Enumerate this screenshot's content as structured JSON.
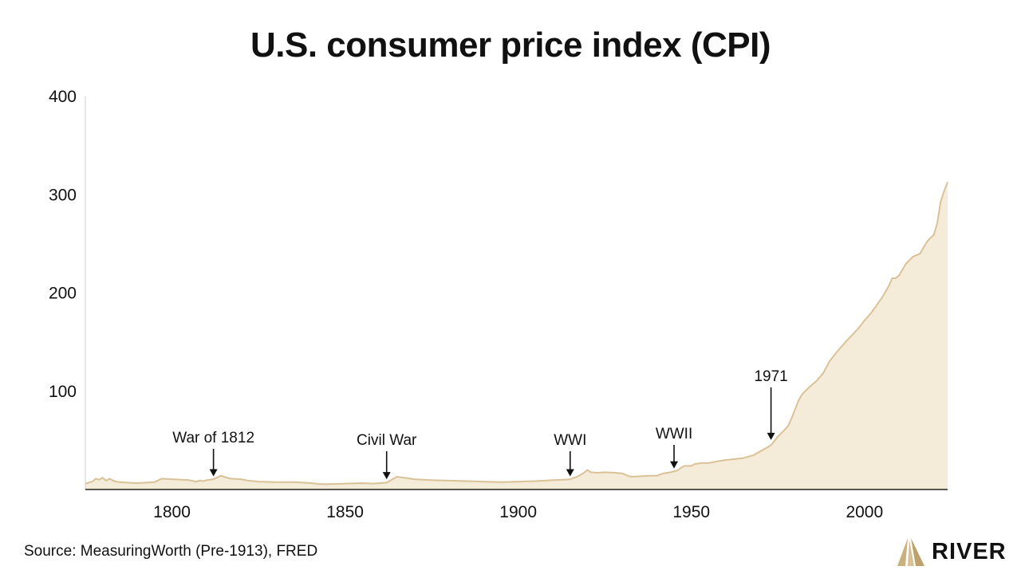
{
  "chart_data": {
    "type": "area",
    "title": "U.S. consumer price index (CPI)",
    "xlabel": "",
    "ylabel": "",
    "xlim": [
      1775,
      2024
    ],
    "ylim": [
      0,
      400
    ],
    "x_ticks": [
      1800,
      1850,
      1900,
      1950,
      2000
    ],
    "y_ticks": [
      100,
      200,
      300,
      400
    ],
    "grid": false,
    "legend": "none",
    "colors": {
      "fill": "#f5ebd9",
      "line": "#d9c297"
    },
    "series": [
      {
        "x": [
          1775,
          1777,
          1778,
          1779,
          1780,
          1781,
          1782,
          1783,
          1784,
          1785,
          1787,
          1790,
          1795,
          1797,
          1800,
          1803,
          1805,
          1807,
          1808,
          1809,
          1810,
          1811,
          1812,
          1813,
          1814,
          1815,
          1817,
          1820,
          1822,
          1825,
          1830,
          1835,
          1838,
          1840,
          1843,
          1845,
          1850,
          1855,
          1858,
          1860,
          1862,
          1864,
          1865,
          1867,
          1870,
          1875,
          1880,
          1885,
          1890,
          1895,
          1900,
          1905,
          1910,
          1913,
          1915,
          1917,
          1918,
          1919,
          1920,
          1921,
          1923,
          1925,
          1928,
          1930,
          1932,
          1933,
          1935,
          1938,
          1940,
          1942,
          1944,
          1946,
          1947,
          1948,
          1950,
          1951,
          1953,
          1955,
          1958,
          1960,
          1965,
          1968,
          1970,
          1971,
          1972,
          1973,
          1975,
          1977,
          1978,
          1979,
          1980,
          1981,
          1982,
          1984,
          1986,
          1988,
          1990,
          1992,
          1995,
          1998,
          2000,
          2002,
          2005,
          2007,
          2008,
          2009,
          2010,
          2012,
          2014,
          2016,
          2018,
          2019,
          2020,
          2021,
          2022,
          2023,
          2024
        ],
        "values": [
          6,
          8,
          11,
          10,
          12,
          9,
          11,
          9,
          8,
          7.5,
          7,
          6.5,
          7.5,
          11,
          10.5,
          10,
          9.5,
          8,
          9,
          8.5,
          9.5,
          10,
          10.5,
          12,
          14,
          13,
          11,
          10.5,
          9,
          8,
          7.5,
          7.5,
          7,
          6.5,
          5.5,
          5.5,
          6,
          6.5,
          6,
          6.5,
          7,
          11,
          13,
          12,
          10.5,
          9.5,
          9,
          8.5,
          8,
          7.5,
          8,
          8.5,
          9.5,
          10,
          10.5,
          13,
          15,
          17,
          20,
          17.5,
          17,
          17.5,
          17,
          16.5,
          13.5,
          13,
          13.5,
          14,
          14,
          16.5,
          17.5,
          19.5,
          22,
          24,
          24,
          26,
          27,
          27,
          29,
          30,
          32,
          35,
          39,
          41,
          43,
          45,
          54,
          61,
          65,
          73,
          82,
          91,
          97,
          104,
          110,
          118,
          131,
          140,
          152,
          163,
          172,
          180,
          195,
          207,
          215,
          215,
          218,
          230,
          237,
          240,
          252,
          256,
          259,
          271,
          293,
          304,
          313
        ]
      }
    ],
    "annotations": [
      {
        "label": "War of 1812",
        "x": 1812,
        "y": 11
      },
      {
        "label": "Civil War",
        "x": 1862,
        "y": 8
      },
      {
        "label": "WWI",
        "x": 1915,
        "y": 11
      },
      {
        "label": "WWII",
        "x": 1945,
        "y": 19
      },
      {
        "label": "1971",
        "x": 1973,
        "y": 48
      }
    ]
  },
  "footer": {
    "source": "Source: MeasuringWorth (Pre-1913), FRED",
    "logo_text": "RIVER"
  }
}
